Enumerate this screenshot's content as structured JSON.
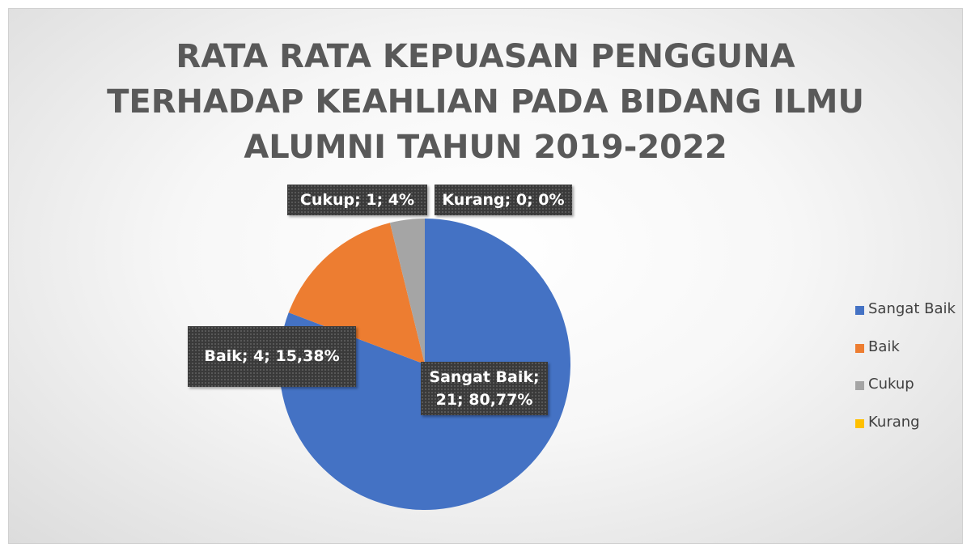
{
  "chart_data": {
    "type": "pie",
    "title": "RATA RATA KEPUASAN PENGGUNA TERHADAP KEAHLIAN PADA BIDANG ILMU ALUMNI TAHUN 2019-2022",
    "categories": [
      "Sangat Baik",
      "Baik",
      "Cukup",
      "Kurang"
    ],
    "values": [
      21,
      4,
      1,
      0
    ],
    "value_labels": [
      "Sangat Baik; 21; 80,77%",
      "Baik; 4; 15,38%",
      "Cukup; 1; 4%",
      "Kurang; 0; 0%"
    ],
    "colors": [
      "#4472c4",
      "#ed7d31",
      "#a5a5a5",
      "#ffc000"
    ],
    "legend": "right"
  }
}
